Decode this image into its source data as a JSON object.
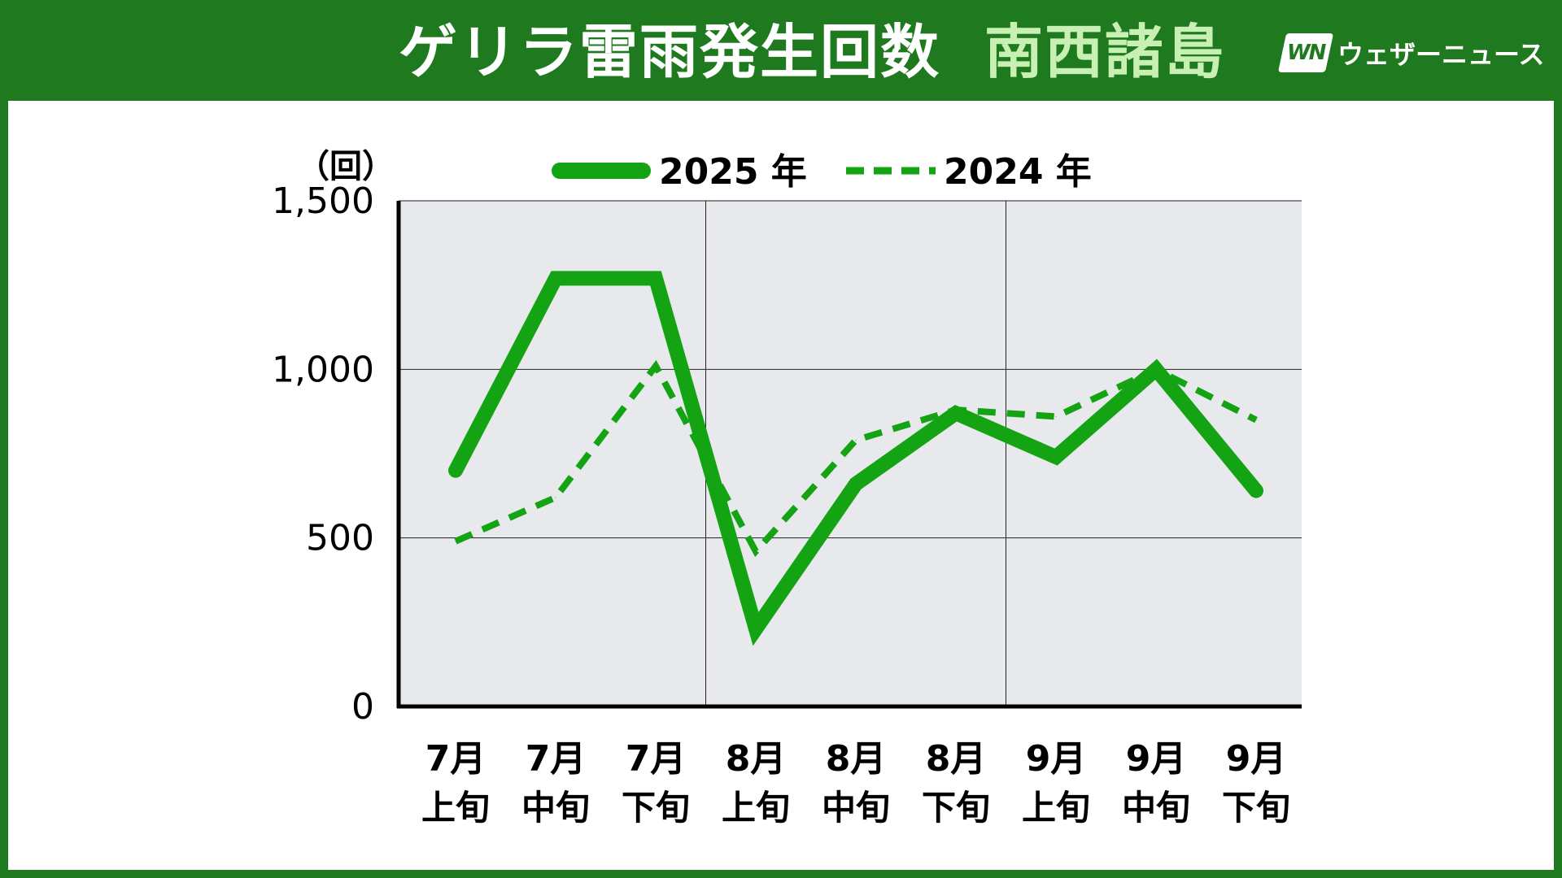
{
  "header": {
    "title": "ゲリラ雷雨発生回数",
    "region": "南西諸島",
    "logo_mark": "WN",
    "logo_text": "ウェザーニュース"
  },
  "colors": {
    "frame": "#1f7a1f",
    "title": "#ffffff",
    "region": "#c8f0b4",
    "plot_bg": "#e8e9ec",
    "series_2025": "#13a313",
    "series_2024": "#13a313"
  },
  "chart_data": {
    "type": "line",
    "ylabel": "（回）",
    "ylim": [
      0,
      1500
    ],
    "yticks": [
      0,
      500,
      1000,
      1500
    ],
    "ytick_labels": [
      "0",
      "500",
      "1,000",
      "1,500"
    ],
    "grid": true,
    "legend_position": "top-center",
    "categories": [
      {
        "month": "7月",
        "period": "上旬"
      },
      {
        "month": "7月",
        "period": "中旬"
      },
      {
        "month": "7月",
        "period": "下旬"
      },
      {
        "month": "8月",
        "period": "上旬"
      },
      {
        "month": "8月",
        "period": "中旬"
      },
      {
        "month": "8月",
        "period": "下旬"
      },
      {
        "month": "9月",
        "period": "上旬"
      },
      {
        "month": "9月",
        "period": "中旬"
      },
      {
        "month": "9月",
        "period": "下旬"
      }
    ],
    "series": [
      {
        "name": "2025 年",
        "style": "solid",
        "values": [
          700,
          1270,
          1270,
          230,
          660,
          870,
          740,
          1000,
          640
        ]
      },
      {
        "name": "2024 年",
        "style": "dashed",
        "values": [
          490,
          620,
          1010,
          460,
          790,
          880,
          860,
          1000,
          850
        ]
      }
    ]
  }
}
